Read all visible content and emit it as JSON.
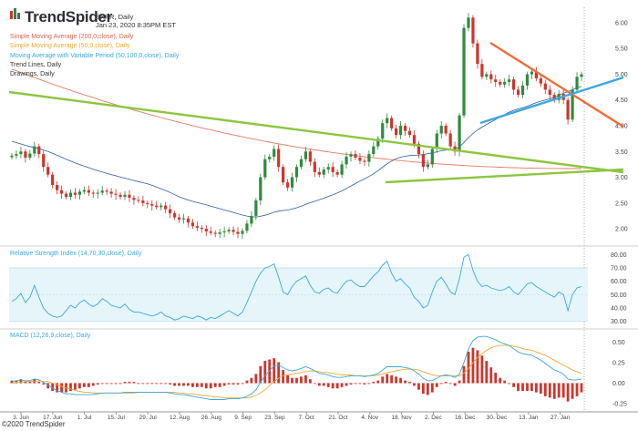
{
  "header": {
    "brand": "TrendSpider",
    "symbol_line": "EXPR, Daily",
    "date_line": "Jan 23, 2020 8:35PM EST"
  },
  "legend": [
    {
      "text": "Simple Moving Average (200,0,close), Daily",
      "color": "#e2624a"
    },
    {
      "text": "Simple Moving Average (50,0,close), Daily",
      "color": "#f0a830"
    },
    {
      "text": "Moving Average with Variable Period (50,100,0,close), Daily",
      "color": "#3aa7e0"
    },
    {
      "text": "Trend Lines, Daily",
      "color": "#333333"
    },
    {
      "text": "Drawings, Daily",
      "color": "#333333"
    }
  ],
  "panels": {
    "rsi_title": "Relative Strength Index (14,70,30,close), Daily",
    "macd_title": "MACD (12,26,9,close), Daily"
  },
  "footer": "©2020 TrendSpider",
  "colors": {
    "up": "#2e8b3e",
    "down": "#d0342c",
    "green_line": "#8dc63f",
    "orange_line": "#f26b38",
    "blue_line": "#3aa7e0",
    "sma200": "#e2624a",
    "sma50": "#2b5f9e",
    "rsi_line": "#3aa7e0",
    "rsi_band": "#e6f5fa",
    "macd_line": "#3aa7e0",
    "signal_line": "#f0a830"
  },
  "chart_data": [
    {
      "type": "candlestick",
      "y_ticks": [
        "6.00",
        "5.50",
        "5.00",
        "4.50",
        "4.00",
        "3.50",
        "3.00",
        "2.50",
        "2.00"
      ],
      "ylim": [
        1.7,
        6.3
      ],
      "x_ticks": [
        "3. Jun",
        "17. Jun",
        "1. Jul",
        "15. Jul",
        "29. Jul",
        "12. Aug",
        "26. Aug",
        "9. Sep",
        "23. Sep",
        "7. Oct",
        "21. Oct",
        "4. Nov",
        "18. Nov",
        "2. Dec",
        "16. Dec",
        "30. Dec",
        "13. Jan",
        "27. Jan"
      ],
      "close": [
        3.42,
        3.45,
        3.5,
        3.38,
        3.46,
        3.6,
        3.45,
        3.2,
        3.05,
        2.85,
        2.75,
        2.68,
        2.62,
        2.7,
        2.66,
        2.72,
        2.75,
        2.7,
        2.68,
        2.7,
        2.74,
        2.72,
        2.68,
        2.66,
        2.62,
        2.66,
        2.6,
        2.56,
        2.55,
        2.5,
        2.48,
        2.45,
        2.42,
        2.45,
        2.38,
        2.3,
        2.22,
        2.18,
        2.2,
        2.12,
        2.05,
        2.02,
        2.0,
        1.95,
        1.92,
        1.9,
        1.93,
        1.95,
        1.98,
        1.94,
        1.9,
        1.96,
        2.1,
        2.25,
        2.55,
        3.0,
        3.35,
        3.4,
        3.55,
        3.2,
        2.9,
        2.8,
        3.0,
        3.2,
        3.35,
        3.5,
        3.3,
        3.1,
        3.05,
        3.15,
        3.2,
        3.1,
        3.05,
        3.25,
        3.4,
        3.45,
        3.38,
        3.32,
        3.3,
        3.45,
        3.6,
        3.75,
        4.05,
        4.15,
        3.95,
        3.82,
        4.0,
        3.9,
        3.82,
        3.65,
        3.45,
        3.2,
        3.25,
        3.55,
        3.85,
        4.0,
        3.85,
        3.6,
        3.5,
        4.2,
        5.9,
        6.1,
        5.6,
        5.2,
        4.95,
        5.0,
        4.9,
        4.85,
        4.8,
        4.85,
        4.9,
        4.7,
        4.6,
        4.78,
        5.0,
        5.05,
        4.92,
        4.82,
        4.7,
        4.6,
        4.5,
        4.62,
        4.5,
        4.12,
        4.7,
        4.95,
        5.0
      ]
    },
    {
      "type": "line",
      "name": "Relative Strength Index (14,70,30,close), Daily",
      "y_ticks": [
        "80.00",
        "70.00",
        "60.00",
        "50.00",
        "40.00",
        "30.00"
      ],
      "ylim": [
        25,
        85
      ],
      "band": [
        30,
        70
      ],
      "values": [
        45,
        47,
        51,
        44,
        48,
        57,
        48,
        40,
        36,
        34,
        33,
        34,
        38,
        42,
        40,
        44,
        46,
        43,
        41,
        43,
        47,
        45,
        42,
        41,
        40,
        43,
        39,
        37,
        37,
        36,
        35,
        34,
        35,
        37,
        34,
        33,
        31,
        32,
        34,
        33,
        32,
        34,
        33,
        31,
        33,
        32,
        34,
        36,
        38,
        36,
        34,
        37,
        44,
        52,
        60,
        66,
        70,
        71,
        73,
        63,
        52,
        50,
        56,
        60,
        62,
        64,
        57,
        52,
        51,
        54,
        55,
        52,
        51,
        56,
        60,
        61,
        58,
        56,
        56,
        60,
        64,
        67,
        72,
        75,
        66,
        60,
        62,
        58,
        55,
        48,
        45,
        40,
        42,
        52,
        60,
        63,
        58,
        52,
        50,
        62,
        78,
        80,
        68,
        60,
        56,
        57,
        55,
        54,
        53,
        54,
        56,
        52,
        50,
        54,
        58,
        59,
        56,
        54,
        52,
        50,
        48,
        52,
        50,
        38,
        50,
        55,
        56
      ]
    },
    {
      "type": "bar+line",
      "name": "MACD (12,26,9,close), Daily",
      "y_ticks": [
        "0.50",
        "0.25",
        "0.00",
        "-0.25"
      ],
      "ylim": [
        -0.35,
        0.65
      ],
      "macd": [
        0.02,
        0.03,
        0.04,
        0.03,
        0.03,
        0.05,
        0.04,
        0.01,
        -0.02,
        -0.06,
        -0.09,
        -0.11,
        -0.13,
        -0.13,
        -0.14,
        -0.14,
        -0.14,
        -0.14,
        -0.14,
        -0.13,
        -0.12,
        -0.12,
        -0.12,
        -0.12,
        -0.12,
        -0.11,
        -0.11,
        -0.11,
        -0.11,
        -0.11,
        -0.11,
        -0.11,
        -0.11,
        -0.11,
        -0.11,
        -0.12,
        -0.13,
        -0.14,
        -0.14,
        -0.15,
        -0.16,
        -0.17,
        -0.18,
        -0.19,
        -0.2,
        -0.2,
        -0.2,
        -0.2,
        -0.19,
        -0.19,
        -0.19,
        -0.18,
        -0.16,
        -0.13,
        -0.08,
        0.01,
        0.09,
        0.15,
        0.21,
        0.22,
        0.19,
        0.16,
        0.15,
        0.16,
        0.18,
        0.2,
        0.18,
        0.15,
        0.12,
        0.11,
        0.1,
        0.08,
        0.07,
        0.07,
        0.08,
        0.09,
        0.09,
        0.09,
        0.08,
        0.09,
        0.1,
        0.12,
        0.16,
        0.2,
        0.2,
        0.2,
        0.2,
        0.19,
        0.18,
        0.15,
        0.11,
        0.06,
        0.03,
        0.03,
        0.06,
        0.09,
        0.1,
        0.09,
        0.07,
        0.11,
        0.25,
        0.42,
        0.52,
        0.56,
        0.57,
        0.57,
        0.55,
        0.53,
        0.5,
        0.48,
        0.46,
        0.42,
        0.38,
        0.36,
        0.35,
        0.34,
        0.31,
        0.28,
        0.24,
        0.2,
        0.16,
        0.14,
        0.11,
        0.05,
        0.04,
        0.04,
        0.05
      ],
      "signal": [
        0.0,
        0.01,
        0.01,
        0.02,
        0.02,
        0.02,
        0.03,
        0.02,
        0.02,
        0.0,
        -0.02,
        -0.04,
        -0.06,
        -0.07,
        -0.09,
        -0.1,
        -0.11,
        -0.11,
        -0.12,
        -0.12,
        -0.12,
        -0.12,
        -0.12,
        -0.12,
        -0.12,
        -0.12,
        -0.12,
        -0.12,
        -0.11,
        -0.11,
        -0.11,
        -0.11,
        -0.11,
        -0.11,
        -0.11,
        -0.11,
        -0.11,
        -0.12,
        -0.12,
        -0.13,
        -0.13,
        -0.14,
        -0.15,
        -0.15,
        -0.16,
        -0.17,
        -0.17,
        -0.18,
        -0.18,
        -0.18,
        -0.18,
        -0.18,
        -0.18,
        -0.17,
        -0.15,
        -0.12,
        -0.08,
        -0.03,
        0.02,
        0.06,
        0.09,
        0.1,
        0.11,
        0.12,
        0.13,
        0.14,
        0.15,
        0.15,
        0.14,
        0.13,
        0.13,
        0.12,
        0.11,
        0.1,
        0.1,
        0.1,
        0.09,
        0.09,
        0.09,
        0.09,
        0.09,
        0.1,
        0.11,
        0.13,
        0.14,
        0.15,
        0.16,
        0.17,
        0.17,
        0.17,
        0.16,
        0.14,
        0.12,
        0.1,
        0.09,
        0.09,
        0.09,
        0.09,
        0.09,
        0.09,
        0.12,
        0.18,
        0.25,
        0.31,
        0.36,
        0.4,
        0.43,
        0.45,
        0.46,
        0.46,
        0.46,
        0.45,
        0.44,
        0.42,
        0.41,
        0.4,
        0.38,
        0.36,
        0.34,
        0.31,
        0.28,
        0.25,
        0.22,
        0.19,
        0.16,
        0.14,
        0.12
      ]
    }
  ]
}
